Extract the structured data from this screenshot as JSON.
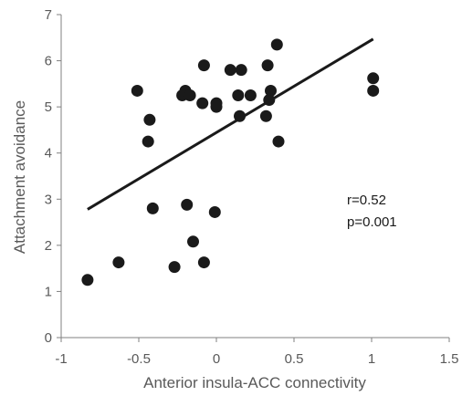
{
  "chart_data": {
    "type": "scatter",
    "xlabel": "Anterior insula-ACC connectivity",
    "ylabel": "Attachment avoidance",
    "xlim": [
      -1,
      1.5
    ],
    "ylim": [
      0,
      7
    ],
    "x_ticks": [
      "-1",
      "-0.5",
      "0",
      "0.5",
      "1",
      "1.5"
    ],
    "y_ticks": [
      "0",
      "1",
      "2",
      "3",
      "4",
      "5",
      "6",
      "7"
    ],
    "grid": false,
    "points": [
      {
        "x": -0.83,
        "y": 1.25
      },
      {
        "x": -0.63,
        "y": 1.63
      },
      {
        "x": -0.51,
        "y": 5.35
      },
      {
        "x": -0.43,
        "y": 4.72
      },
      {
        "x": -0.44,
        "y": 4.25
      },
      {
        "x": -0.41,
        "y": 2.8
      },
      {
        "x": -0.27,
        "y": 1.53
      },
      {
        "x": -0.22,
        "y": 5.25
      },
      {
        "x": -0.2,
        "y": 5.35
      },
      {
        "x": -0.19,
        "y": 2.88
      },
      {
        "x": -0.17,
        "y": 5.25
      },
      {
        "x": -0.15,
        "y": 2.08
      },
      {
        "x": -0.09,
        "y": 5.08
      },
      {
        "x": -0.08,
        "y": 5.9
      },
      {
        "x": -0.08,
        "y": 1.63
      },
      {
        "x": 0.0,
        "y": 5.0
      },
      {
        "x": 0.0,
        "y": 5.08
      },
      {
        "x": -0.01,
        "y": 2.72
      },
      {
        "x": 0.09,
        "y": 5.8
      },
      {
        "x": 0.14,
        "y": 5.25
      },
      {
        "x": 0.15,
        "y": 4.8
      },
      {
        "x": 0.16,
        "y": 5.8
      },
      {
        "x": 0.22,
        "y": 5.25
      },
      {
        "x": 0.32,
        "y": 4.8
      },
      {
        "x": 0.33,
        "y": 5.9
      },
      {
        "x": 0.34,
        "y": 5.15
      },
      {
        "x": 0.35,
        "y": 5.35
      },
      {
        "x": 0.39,
        "y": 6.35
      },
      {
        "x": 0.4,
        "y": 4.25
      },
      {
        "x": 1.01,
        "y": 5.62
      },
      {
        "x": 1.01,
        "y": 5.35
      }
    ],
    "trendline": {
      "x1": -0.83,
      "y1": 2.78,
      "x2": 1.01,
      "y2": 6.47
    },
    "annotations": {
      "r_text": "r=0.52",
      "p_text": "p=0.001"
    },
    "colors": {
      "points": "#1a1a1a",
      "trendline": "#1a1a1a",
      "axes": "#808080"
    }
  }
}
